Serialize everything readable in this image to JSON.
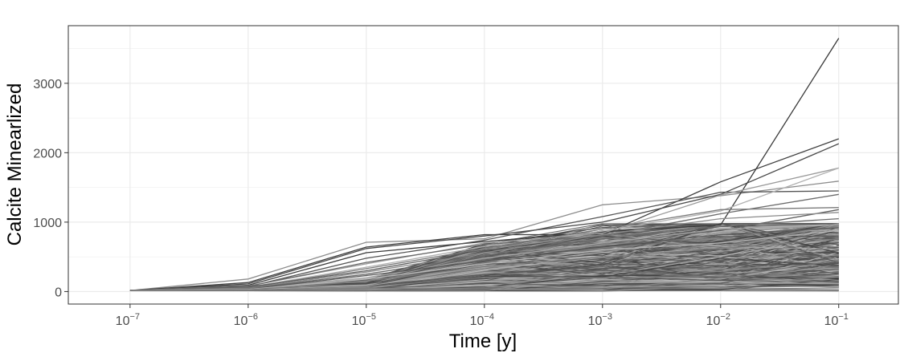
{
  "chart_data": {
    "type": "line",
    "title": "",
    "xlabel": "Time [y]",
    "ylabel": "Calcite Minearlized",
    "x_scale": "log10",
    "x": [
      1e-07,
      1e-06,
      1e-05,
      0.0001,
      0.001,
      0.01,
      0.1
    ],
    "x_tick_labels": [
      {
        "base": "10",
        "exp": "−7"
      },
      {
        "base": "10",
        "exp": "−6"
      },
      {
        "base": "10",
        "exp": "−5"
      },
      {
        "base": "10",
        "exp": "−4"
      },
      {
        "base": "10",
        "exp": "−3"
      },
      {
        "base": "10",
        "exp": "−2"
      },
      {
        "base": "10",
        "exp": "−1"
      }
    ],
    "xlim": [
      3e-08,
      0.32
    ],
    "y_ticks": [
      0,
      1000,
      2000,
      3000
    ],
    "y_tick_labels": [
      "0",
      "1000",
      "2000",
      "3000"
    ],
    "ylim": [
      -180,
      3830
    ],
    "grid": true,
    "legend": "none",
    "series_colors": [
      "#404040",
      "#4d4d4d",
      "#5a5a5a",
      "#6e6e6e",
      "#858585",
      "#999999",
      "#aaaaaa",
      "#bdbdbd"
    ],
    "background_series_count": 520,
    "series": [
      {
        "values": [
          15,
          180,
          710,
          760,
          1250,
          1380,
          1590
        ],
        "color": "#8c8c8c"
      },
      {
        "values": [
          15,
          130,
          640,
          820,
          820,
          1580,
          2200
        ],
        "color": "#3f3f3f"
      },
      {
        "values": [
          15,
          110,
          620,
          800,
          1000,
          1400,
          2130
        ],
        "color": "#4a4a4a"
      },
      {
        "values": [
          15,
          90,
          560,
          720,
          860,
          960,
          3650
        ],
        "color": "#3a3a3a"
      },
      {
        "values": [
          15,
          70,
          480,
          740,
          1080,
          1430,
          1450
        ],
        "color": "#555555"
      },
      {
        "values": [
          15,
          80,
          400,
          700,
          840,
          1390,
          1780
        ],
        "color": "#9a9a9a"
      },
      {
        "values": [
          15,
          60,
          350,
          650,
          870,
          1160,
          1780
        ],
        "color": "#b0b0b0"
      },
      {
        "values": [
          15,
          75,
          420,
          680,
          800,
          1120,
          1400
        ],
        "color": "#6a6a6a"
      },
      {
        "values": [
          15,
          55,
          330,
          620,
          900,
          1180,
          1210
        ],
        "color": "#7a7a7a"
      },
      {
        "values": [
          15,
          65,
          300,
          600,
          700,
          880,
          1180
        ],
        "color": "#5e5e5e"
      },
      {
        "values": [
          15,
          50,
          280,
          560,
          820,
          1050,
          1140
        ],
        "color": "#8a8a8a"
      },
      {
        "values": [
          15,
          45,
          250,
          520,
          760,
          940,
          1050
        ],
        "color": "#6a6a6a"
      },
      {
        "values": [
          15,
          40,
          200,
          480,
          700,
          900,
          960
        ],
        "color": "#a5a5a5"
      },
      {
        "values": [
          15,
          35,
          230,
          440,
          650,
          820,
          920
        ],
        "color": "#5a5a5a"
      },
      {
        "values": [
          15,
          30,
          180,
          400,
          600,
          700,
          880
        ],
        "color": "#b5b5b5"
      },
      {
        "values": [
          15,
          25,
          150,
          360,
          500,
          620,
          760
        ],
        "color": "#7d7d7d"
      }
    ]
  }
}
